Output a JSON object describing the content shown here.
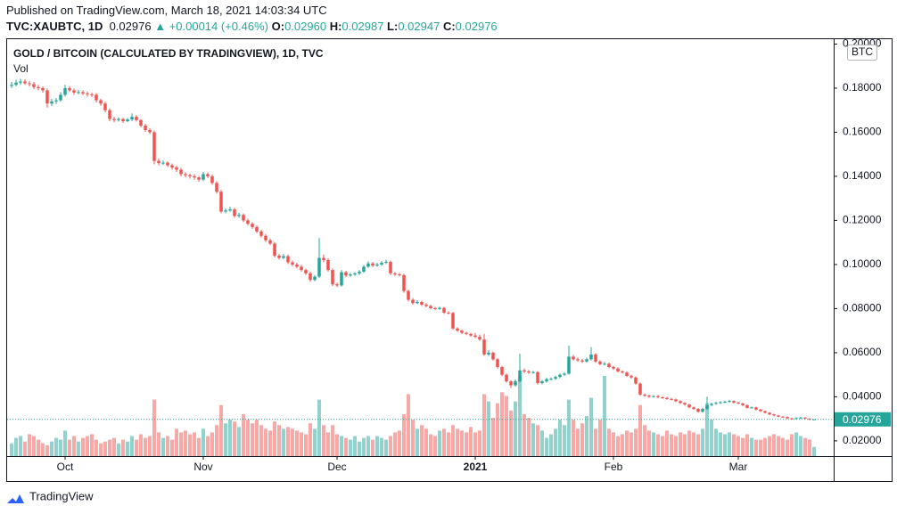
{
  "header": {
    "published": "Published on TradingView.com, March 18, 2021 14:03:34 UTC",
    "symbol": "TVC:XAUBTC, 1D",
    "last": "0.02976",
    "change": "▲ +0.00014 (+0.46%)",
    "quote": [
      {
        "label": "O:",
        "value": "0.02960"
      },
      {
        "label": "H:",
        "value": "0.02987"
      },
      {
        "label": "L:",
        "value": "0.02947"
      },
      {
        "label": "C:",
        "value": "0.02976"
      }
    ]
  },
  "footer": {
    "brand": "TradingView"
  },
  "chart_data": {
    "type": "candlestick",
    "title": "GOLD / BITCOIN (CALCULATED BY TRADINGVIEW), 1D, TVC",
    "volume_label": "Vol",
    "currency": "BTC",
    "up_color": "#26a69a",
    "down_color": "#ef5350",
    "grid": true,
    "last_price": 0.02976,
    "xlim": [
      -1,
      184.4
    ],
    "ylim": [
      0.0131,
      0.2022
    ],
    "xticks": [
      {
        "value": 12,
        "label": "Oct"
      },
      {
        "value": 43,
        "label": "Nov"
      },
      {
        "value": 73,
        "label": "Dec"
      },
      {
        "value": 104,
        "label": "2021"
      },
      {
        "value": 135,
        "label": "Feb"
      },
      {
        "value": 163,
        "label": "Mar"
      }
    ],
    "yticks": [
      {
        "value": 0.02,
        "label": "0.02000"
      },
      {
        "value": 0.04,
        "label": "0.04000"
      },
      {
        "value": 0.06,
        "label": "0.06000"
      },
      {
        "value": 0.08,
        "label": "0.08000"
      },
      {
        "value": 0.1,
        "label": "0.10000"
      },
      {
        "value": 0.12,
        "label": "0.12000"
      },
      {
        "value": 0.14,
        "label": "0.14000"
      },
      {
        "value": 0.16,
        "label": "0.16000"
      },
      {
        "value": 0.18,
        "label": "0.18000"
      },
      {
        "value": 0.2,
        "label": "0.20000"
      }
    ],
    "candles": [
      [
        0.181,
        0.1828,
        0.18,
        0.1815
      ],
      [
        0.1815,
        0.1838,
        0.1808,
        0.1825
      ],
      [
        0.1825,
        0.1842,
        0.1815,
        0.183
      ],
      [
        0.183,
        0.184,
        0.1815,
        0.1822
      ],
      [
        0.1822,
        0.1832,
        0.1808,
        0.1818
      ],
      [
        0.1818,
        0.1828,
        0.1795,
        0.1805
      ],
      [
        0.1805,
        0.1815,
        0.179,
        0.18
      ],
      [
        0.18,
        0.1808,
        0.178,
        0.179
      ],
      [
        0.179,
        0.1798,
        0.1712,
        0.173
      ],
      [
        0.173,
        0.1752,
        0.172,
        0.174
      ],
      [
        0.174,
        0.1755,
        0.1728,
        0.1745
      ],
      [
        0.1745,
        0.1782,
        0.1738,
        0.177
      ],
      [
        0.177,
        0.1815,
        0.1762,
        0.18
      ],
      [
        0.18,
        0.181,
        0.1782,
        0.179
      ],
      [
        0.179,
        0.1798,
        0.177,
        0.178
      ],
      [
        0.178,
        0.1792,
        0.1772,
        0.1782
      ],
      [
        0.1782,
        0.179,
        0.1768,
        0.1776
      ],
      [
        0.1776,
        0.1785,
        0.1762,
        0.1772
      ],
      [
        0.1772,
        0.178,
        0.176,
        0.177
      ],
      [
        0.177,
        0.1778,
        0.1735,
        0.1745
      ],
      [
        0.1745,
        0.1752,
        0.172,
        0.173
      ],
      [
        0.173,
        0.1738,
        0.169,
        0.17
      ],
      [
        0.17,
        0.1708,
        0.165,
        0.166
      ],
      [
        0.166,
        0.167,
        0.1645,
        0.1655
      ],
      [
        0.1655,
        0.1668,
        0.1648,
        0.166
      ],
      [
        0.166,
        0.1665,
        0.1642,
        0.165
      ],
      [
        0.165,
        0.1665,
        0.1645,
        0.1658
      ],
      [
        0.1658,
        0.1685,
        0.165,
        0.167
      ],
      [
        0.167,
        0.1678,
        0.1648,
        0.1655
      ],
      [
        0.1655,
        0.166,
        0.1622,
        0.163
      ],
      [
        0.163,
        0.1638,
        0.1602,
        0.161
      ],
      [
        0.161,
        0.1618,
        0.1592,
        0.16
      ],
      [
        0.16,
        0.1608,
        0.1455,
        0.147
      ],
      [
        0.147,
        0.148,
        0.145,
        0.146
      ],
      [
        0.146,
        0.1472,
        0.1452,
        0.1462
      ],
      [
        0.1462,
        0.1468,
        0.1442,
        0.145
      ],
      [
        0.145,
        0.1458,
        0.143,
        0.144
      ],
      [
        0.144,
        0.1448,
        0.142,
        0.143
      ],
      [
        0.143,
        0.1438,
        0.14,
        0.141
      ],
      [
        0.141,
        0.1418,
        0.1395,
        0.1405
      ],
      [
        0.1405,
        0.1412,
        0.139,
        0.14
      ],
      [
        0.14,
        0.141,
        0.1385,
        0.1395
      ],
      [
        0.1395,
        0.1402,
        0.1375,
        0.1385
      ],
      [
        0.1385,
        0.142,
        0.1378,
        0.141
      ],
      [
        0.141,
        0.1418,
        0.1392,
        0.14
      ],
      [
        0.14,
        0.1408,
        0.1362,
        0.137
      ],
      [
        0.137,
        0.1378,
        0.1322,
        0.133
      ],
      [
        0.133,
        0.1338,
        0.1232,
        0.124
      ],
      [
        0.124,
        0.1255,
        0.1232,
        0.1245
      ],
      [
        0.1245,
        0.1262,
        0.1238,
        0.125
      ],
      [
        0.125,
        0.1258,
        0.1212,
        0.122
      ],
      [
        0.122,
        0.1235,
        0.1212,
        0.1225
      ],
      [
        0.1225,
        0.1232,
        0.1192,
        0.12
      ],
      [
        0.12,
        0.1208,
        0.1178,
        0.1185
      ],
      [
        0.1185,
        0.1192,
        0.1162,
        0.117
      ],
      [
        0.117,
        0.1178,
        0.1142,
        0.115
      ],
      [
        0.115,
        0.1158,
        0.1122,
        0.113
      ],
      [
        0.113,
        0.1138,
        0.1102,
        0.111
      ],
      [
        0.111,
        0.1118,
        0.1088,
        0.1095
      ],
      [
        0.1095,
        0.1102,
        0.1032,
        0.104
      ],
      [
        0.104,
        0.1048,
        0.1022,
        0.103
      ],
      [
        0.103,
        0.1048,
        0.1024,
        0.1038
      ],
      [
        0.1038,
        0.1045,
        0.1002,
        0.101
      ],
      [
        0.101,
        0.1018,
        0.0992,
        0.1
      ],
      [
        0.1,
        0.1008,
        0.0982,
        0.099
      ],
      [
        0.099,
        0.0998,
        0.0968,
        0.0975
      ],
      [
        0.0975,
        0.0982,
        0.0952,
        0.096
      ],
      [
        0.096,
        0.0968,
        0.0922,
        0.093
      ],
      [
        0.093,
        0.0952,
        0.0924,
        0.0945
      ],
      [
        0.0945,
        0.112,
        0.0938,
        0.103
      ],
      [
        0.103,
        0.1045,
        0.101,
        0.102
      ],
      [
        0.102,
        0.1028,
        0.0968,
        0.0975
      ],
      [
        0.0975,
        0.0982,
        0.0902,
        0.091
      ],
      [
        0.091,
        0.0918,
        0.0898,
        0.0905
      ],
      [
        0.0905,
        0.0975,
        0.09,
        0.0965
      ],
      [
        0.0965,
        0.0972,
        0.0942,
        0.095
      ],
      [
        0.095,
        0.0962,
        0.0944,
        0.0955
      ],
      [
        0.0955,
        0.0965,
        0.0948,
        0.096
      ],
      [
        0.096,
        0.0975,
        0.0952,
        0.0968
      ],
      [
        0.0968,
        0.0998,
        0.0962,
        0.099
      ],
      [
        0.099,
        0.1015,
        0.0985,
        0.1005
      ],
      [
        0.1005,
        0.1012,
        0.0988,
        0.0995
      ],
      [
        0.0995,
        0.1008,
        0.099,
        0.1
      ],
      [
        0.1,
        0.1015,
        0.0994,
        0.1008
      ],
      [
        0.1008,
        0.1022,
        0.1002,
        0.1012
      ],
      [
        0.1012,
        0.1018,
        0.0952,
        0.096
      ],
      [
        0.096,
        0.0966,
        0.0948,
        0.0955
      ],
      [
        0.0955,
        0.0962,
        0.0946,
        0.0952
      ],
      [
        0.0952,
        0.0958,
        0.0872,
        0.088
      ],
      [
        0.088,
        0.0886,
        0.0832,
        0.084
      ],
      [
        0.084,
        0.0848,
        0.0818,
        0.0825
      ],
      [
        0.0825,
        0.0838,
        0.082,
        0.083
      ],
      [
        0.083,
        0.0836,
        0.0812,
        0.0818
      ],
      [
        0.0818,
        0.0825,
        0.0806,
        0.0812
      ],
      [
        0.0812,
        0.0818,
        0.0796,
        0.0802
      ],
      [
        0.0802,
        0.0808,
        0.0792,
        0.0798
      ],
      [
        0.0798,
        0.081,
        0.0794,
        0.0803
      ],
      [
        0.0803,
        0.0808,
        0.0776,
        0.0782
      ],
      [
        0.0782,
        0.0788,
        0.0774,
        0.078
      ],
      [
        0.078,
        0.0785,
        0.0704,
        0.071
      ],
      [
        0.071,
        0.0716,
        0.0694,
        0.07
      ],
      [
        0.07,
        0.0706,
        0.0684,
        0.069
      ],
      [
        0.069,
        0.0695,
        0.068,
        0.0685
      ],
      [
        0.0685,
        0.069,
        0.0672,
        0.0678
      ],
      [
        0.0678,
        0.069,
        0.0666,
        0.0672
      ],
      [
        0.0672,
        0.0682,
        0.0654,
        0.066
      ],
      [
        0.066,
        0.0685,
        0.0586,
        0.0592
      ],
      [
        0.0592,
        0.0612,
        0.0585,
        0.06
      ],
      [
        0.06,
        0.0606,
        0.0564,
        0.057
      ],
      [
        0.057,
        0.0576,
        0.0528,
        0.0535
      ],
      [
        0.0535,
        0.054,
        0.0494,
        0.05
      ],
      [
        0.05,
        0.0506,
        0.0464,
        0.047
      ],
      [
        0.047,
        0.0475,
        0.044,
        0.0452
      ],
      [
        0.0452,
        0.0478,
        0.0446,
        0.047
      ],
      [
        0.047,
        0.0595,
        0.0465,
        0.052
      ],
      [
        0.052,
        0.0528,
        0.0508,
        0.0515
      ],
      [
        0.0515,
        0.0522,
        0.0504,
        0.051
      ],
      [
        0.051,
        0.0518,
        0.0505,
        0.0512
      ],
      [
        0.0512,
        0.0516,
        0.0456,
        0.0462
      ],
      [
        0.0462,
        0.0476,
        0.0456,
        0.047
      ],
      [
        0.047,
        0.0486,
        0.0464,
        0.048
      ],
      [
        0.048,
        0.0488,
        0.0474,
        0.0482
      ],
      [
        0.0482,
        0.0496,
        0.0476,
        0.049
      ],
      [
        0.049,
        0.0506,
        0.0484,
        0.05
      ],
      [
        0.05,
        0.0512,
        0.0494,
        0.0505
      ],
      [
        0.0505,
        0.0632,
        0.05,
        0.0582
      ],
      [
        0.0582,
        0.059,
        0.0564,
        0.057
      ],
      [
        0.057,
        0.0578,
        0.056,
        0.0565
      ],
      [
        0.0565,
        0.0572,
        0.0554,
        0.056
      ],
      [
        0.056,
        0.0578,
        0.0555,
        0.057
      ],
      [
        0.057,
        0.0625,
        0.0565,
        0.0592
      ],
      [
        0.0592,
        0.0598,
        0.0554,
        0.056
      ],
      [
        0.056,
        0.0566,
        0.0542,
        0.0548
      ],
      [
        0.0548,
        0.0558,
        0.0542,
        0.055
      ],
      [
        0.055,
        0.0555,
        0.053,
        0.0535
      ],
      [
        0.0535,
        0.054,
        0.0522,
        0.0528
      ],
      [
        0.0528,
        0.0534,
        0.051,
        0.0515
      ],
      [
        0.0515,
        0.052,
        0.0505,
        0.051
      ],
      [
        0.051,
        0.0515,
        0.049,
        0.0495
      ],
      [
        0.0495,
        0.05,
        0.0482,
        0.0488
      ],
      [
        0.0488,
        0.0492,
        0.0455,
        0.046
      ],
      [
        0.046,
        0.0465,
        0.0405,
        0.041
      ],
      [
        0.041,
        0.0416,
        0.04,
        0.0405
      ],
      [
        0.0405,
        0.041,
        0.0395,
        0.04
      ],
      [
        0.04,
        0.0408,
        0.0396,
        0.0403
      ],
      [
        0.0403,
        0.0408,
        0.0393,
        0.0398
      ],
      [
        0.0398,
        0.0402,
        0.039,
        0.0395
      ],
      [
        0.0395,
        0.04,
        0.0386,
        0.039
      ],
      [
        0.039,
        0.0395,
        0.0384,
        0.0388
      ],
      [
        0.0388,
        0.0392,
        0.0376,
        0.038
      ],
      [
        0.038,
        0.0385,
        0.0368,
        0.0372
      ],
      [
        0.0372,
        0.0376,
        0.036,
        0.0365
      ],
      [
        0.0365,
        0.0369,
        0.0348,
        0.0352
      ],
      [
        0.0352,
        0.0356,
        0.0341,
        0.0345
      ],
      [
        0.0345,
        0.0349,
        0.0328,
        0.0332
      ],
      [
        0.0332,
        0.035,
        0.0328,
        0.0345
      ],
      [
        0.0345,
        0.04,
        0.034,
        0.0362
      ],
      [
        0.0362,
        0.0374,
        0.0358,
        0.0368
      ],
      [
        0.0368,
        0.0378,
        0.0364,
        0.0372
      ],
      [
        0.0372,
        0.038,
        0.0368,
        0.0375
      ],
      [
        0.0375,
        0.0383,
        0.0371,
        0.0378
      ],
      [
        0.0378,
        0.0386,
        0.0374,
        0.0381
      ],
      [
        0.0381,
        0.0384,
        0.037,
        0.0374
      ],
      [
        0.0374,
        0.0377,
        0.0366,
        0.037
      ],
      [
        0.037,
        0.0373,
        0.0358,
        0.0362
      ],
      [
        0.0362,
        0.0365,
        0.0346,
        0.035
      ],
      [
        0.035,
        0.0356,
        0.0346,
        0.0352
      ],
      [
        0.0352,
        0.0355,
        0.0338,
        0.0342
      ],
      [
        0.0342,
        0.0345,
        0.0331,
        0.0335
      ],
      [
        0.0335,
        0.0338,
        0.0325,
        0.0328
      ],
      [
        0.0328,
        0.0331,
        0.0317,
        0.032
      ],
      [
        0.032,
        0.0323,
        0.0312,
        0.0315
      ],
      [
        0.0315,
        0.0318,
        0.0307,
        0.031
      ],
      [
        0.031,
        0.0314,
        0.0305,
        0.0308
      ],
      [
        0.0308,
        0.0311,
        0.0299,
        0.0302
      ],
      [
        0.0302,
        0.0305,
        0.0297,
        0.03
      ],
      [
        0.03,
        0.0308,
        0.0298,
        0.0303
      ],
      [
        0.0303,
        0.031,
        0.03,
        0.0306
      ],
      [
        0.0306,
        0.0308,
        0.0298,
        0.0301
      ],
      [
        0.0301,
        0.0303,
        0.0294,
        0.0296
      ],
      [
        0.0296,
        0.02987,
        0.02947,
        0.02976
      ]
    ],
    "volume": [
      14,
      20,
      22,
      16,
      24,
      22,
      18,
      14,
      12,
      16,
      20,
      18,
      28,
      18,
      22,
      16,
      20,
      22,
      24,
      18,
      14,
      16,
      18,
      20,
      14,
      18,
      16,
      22,
      18,
      24,
      20,
      22,
      62,
      26,
      20,
      22,
      18,
      30,
      26,
      28,
      24,
      26,
      20,
      30,
      22,
      26,
      34,
      56,
      36,
      40,
      38,
      32,
      46,
      40,
      36,
      40,
      34,
      30,
      28,
      38,
      34,
      30,
      32,
      30,
      28,
      26,
      24,
      36,
      30,
      62,
      34,
      26,
      34,
      24,
      22,
      20,
      18,
      22,
      16,
      20,
      22,
      18,
      22,
      20,
      18,
      22,
      26,
      28,
      46,
      68,
      40,
      30,
      34,
      30,
      24,
      22,
      28,
      30,
      26,
      34,
      30,
      28,
      26,
      32,
      26,
      28,
      68,
      60,
      42,
      58,
      70,
      66,
      50,
      60,
      88,
      46,
      42,
      36,
      34,
      28,
      20,
      24,
      30,
      40,
      34,
      62,
      40,
      30,
      36,
      44,
      64,
      30,
      40,
      88,
      30,
      26,
      22,
      24,
      28,
      26,
      30,
      56,
      34,
      28,
      26,
      24,
      22,
      28,
      24,
      22,
      26,
      24,
      28,
      26,
      24,
      30,
      58,
      40,
      30,
      26,
      24,
      26,
      24,
      22,
      20,
      24,
      20,
      18,
      18,
      20,
      22,
      24,
      22,
      20,
      18,
      24,
      26,
      22,
      20,
      18,
      10
    ]
  }
}
